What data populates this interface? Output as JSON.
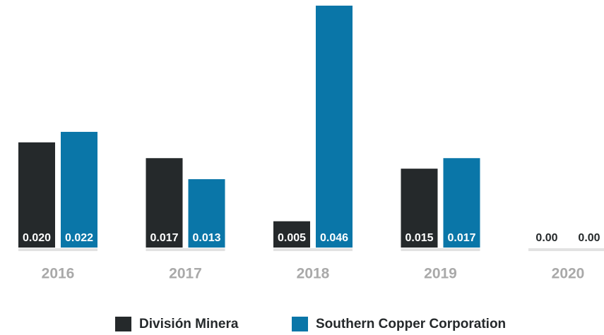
{
  "chart_data": {
    "type": "bar",
    "categories": [
      "2016",
      "2017",
      "2018",
      "2019",
      "2020"
    ],
    "series": [
      {
        "name": "División Minera",
        "color": "#25292b",
        "values": [
          0.02,
          0.017,
          0.005,
          0.015,
          0
        ],
        "value_labels": [
          "0.020",
          "0.017",
          "0.005",
          "0.015",
          "0.00"
        ]
      },
      {
        "name": "Southern Copper Corporation",
        "color": "#0a76a8",
        "values": [
          0.022,
          0.013,
          0.046,
          0.017,
          0
        ],
        "value_labels": [
          "0.022",
          "0.013",
          "0.046",
          "0.017",
          "0.00"
        ]
      }
    ]
  }
}
